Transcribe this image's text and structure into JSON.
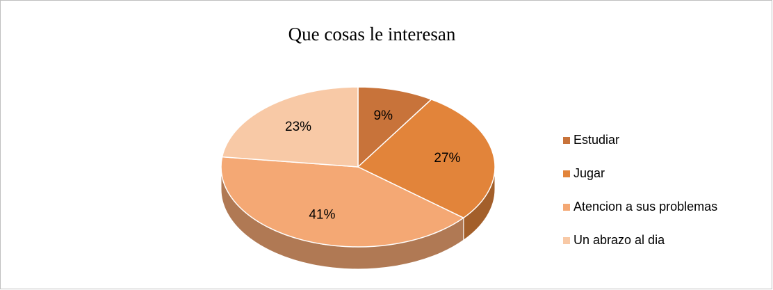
{
  "chart_data": {
    "type": "pie",
    "title": "Que cosas le interesan",
    "categories": [
      "Estudiar",
      "Jugar",
      "Atencion a sus problemas",
      "Un abrazo al dia"
    ],
    "values": [
      9,
      27,
      41,
      23
    ],
    "value_labels": [
      "9%",
      "27%",
      "41%",
      "23%"
    ],
    "colors": [
      "#c8733a",
      "#e2843a",
      "#f4a874",
      "#f8c9a6"
    ],
    "legend": "right"
  }
}
